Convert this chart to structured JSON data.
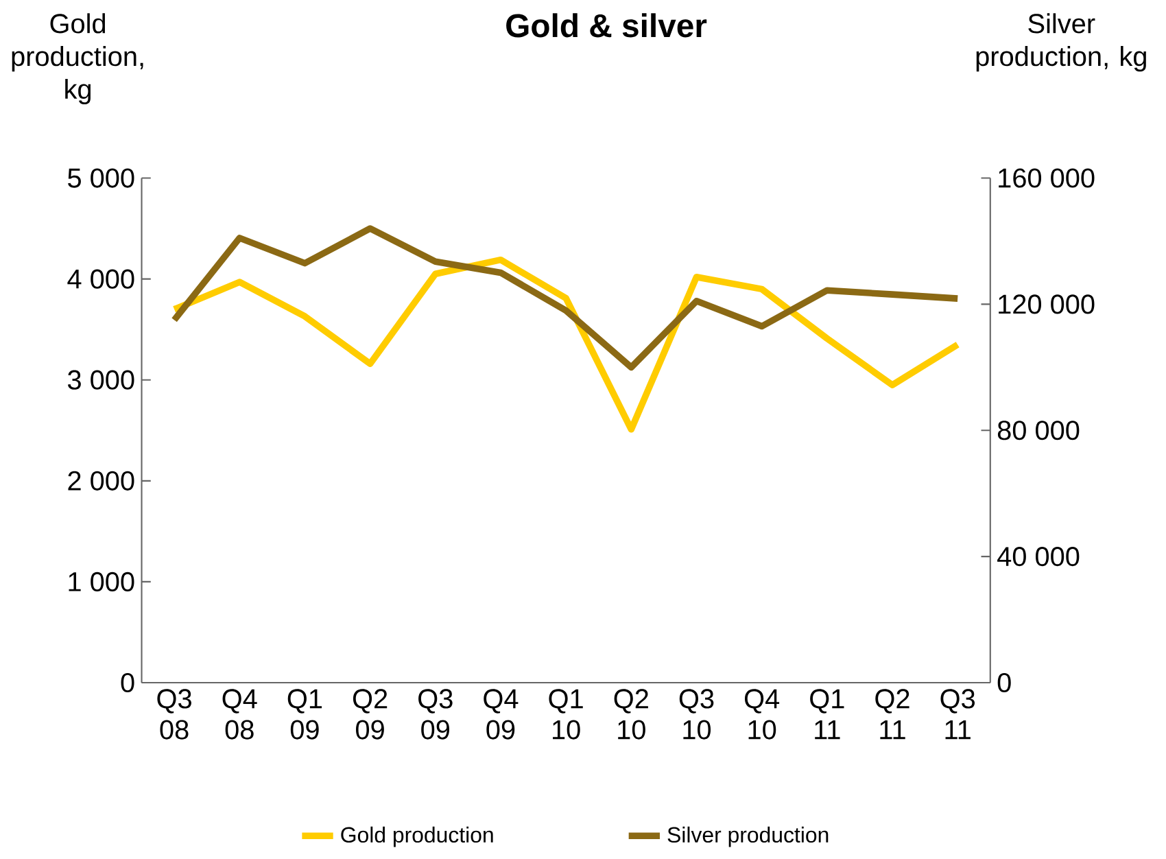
{
  "chart_data": {
    "type": "line",
    "title": "Gold & silver",
    "ylabel": "Gold production, kg",
    "y2label": "Silver production, kg",
    "categories": [
      "Q3 08",
      "Q4 08",
      "Q1 09",
      "Q2 09",
      "Q3 09",
      "Q4 09",
      "Q1 10",
      "Q2 10",
      "Q3 10",
      "Q4 10",
      "Q1 11",
      "Q2 11",
      "Q3 11"
    ],
    "series": [
      {
        "name": "Gold production",
        "color": "#ffcc00",
        "axis": "y",
        "values": [
          3700,
          3970,
          3630,
          3160,
          4050,
          4190,
          3810,
          2510,
          4020,
          3900,
          3410,
          2950,
          3350
        ]
      },
      {
        "name": "Silver production",
        "color": "#8b6914",
        "axis": "y2",
        "values": [
          115000,
          141000,
          133000,
          144000,
          133500,
          130000,
          118000,
          100000,
          121000,
          113000,
          124400,
          123100,
          121800
        ]
      }
    ],
    "ylim": [
      0,
      5000
    ],
    "yticks": [
      0,
      {
        "value": 1000,
        "label": "1 000"
      },
      {
        "value": 2000,
        "label": "2 000"
      },
      {
        "value": 3000,
        "label": "3 000"
      },
      {
        "value": 4000,
        "label": "4 000"
      },
      {
        "value": 5000,
        "label": "5 000"
      }
    ],
    "y2lim": [
      0,
      160000
    ],
    "y2ticks": [
      0,
      {
        "value": 40000,
        "label": "40 000"
      },
      {
        "value": 80000,
        "label": "80 000"
      },
      {
        "value": 120000,
        "label": "120 000"
      },
      {
        "value": 160000,
        "label": "160 000"
      }
    ],
    "legend": "bottom",
    "grid": false,
    "marker": "none",
    "line_style": "solid"
  }
}
